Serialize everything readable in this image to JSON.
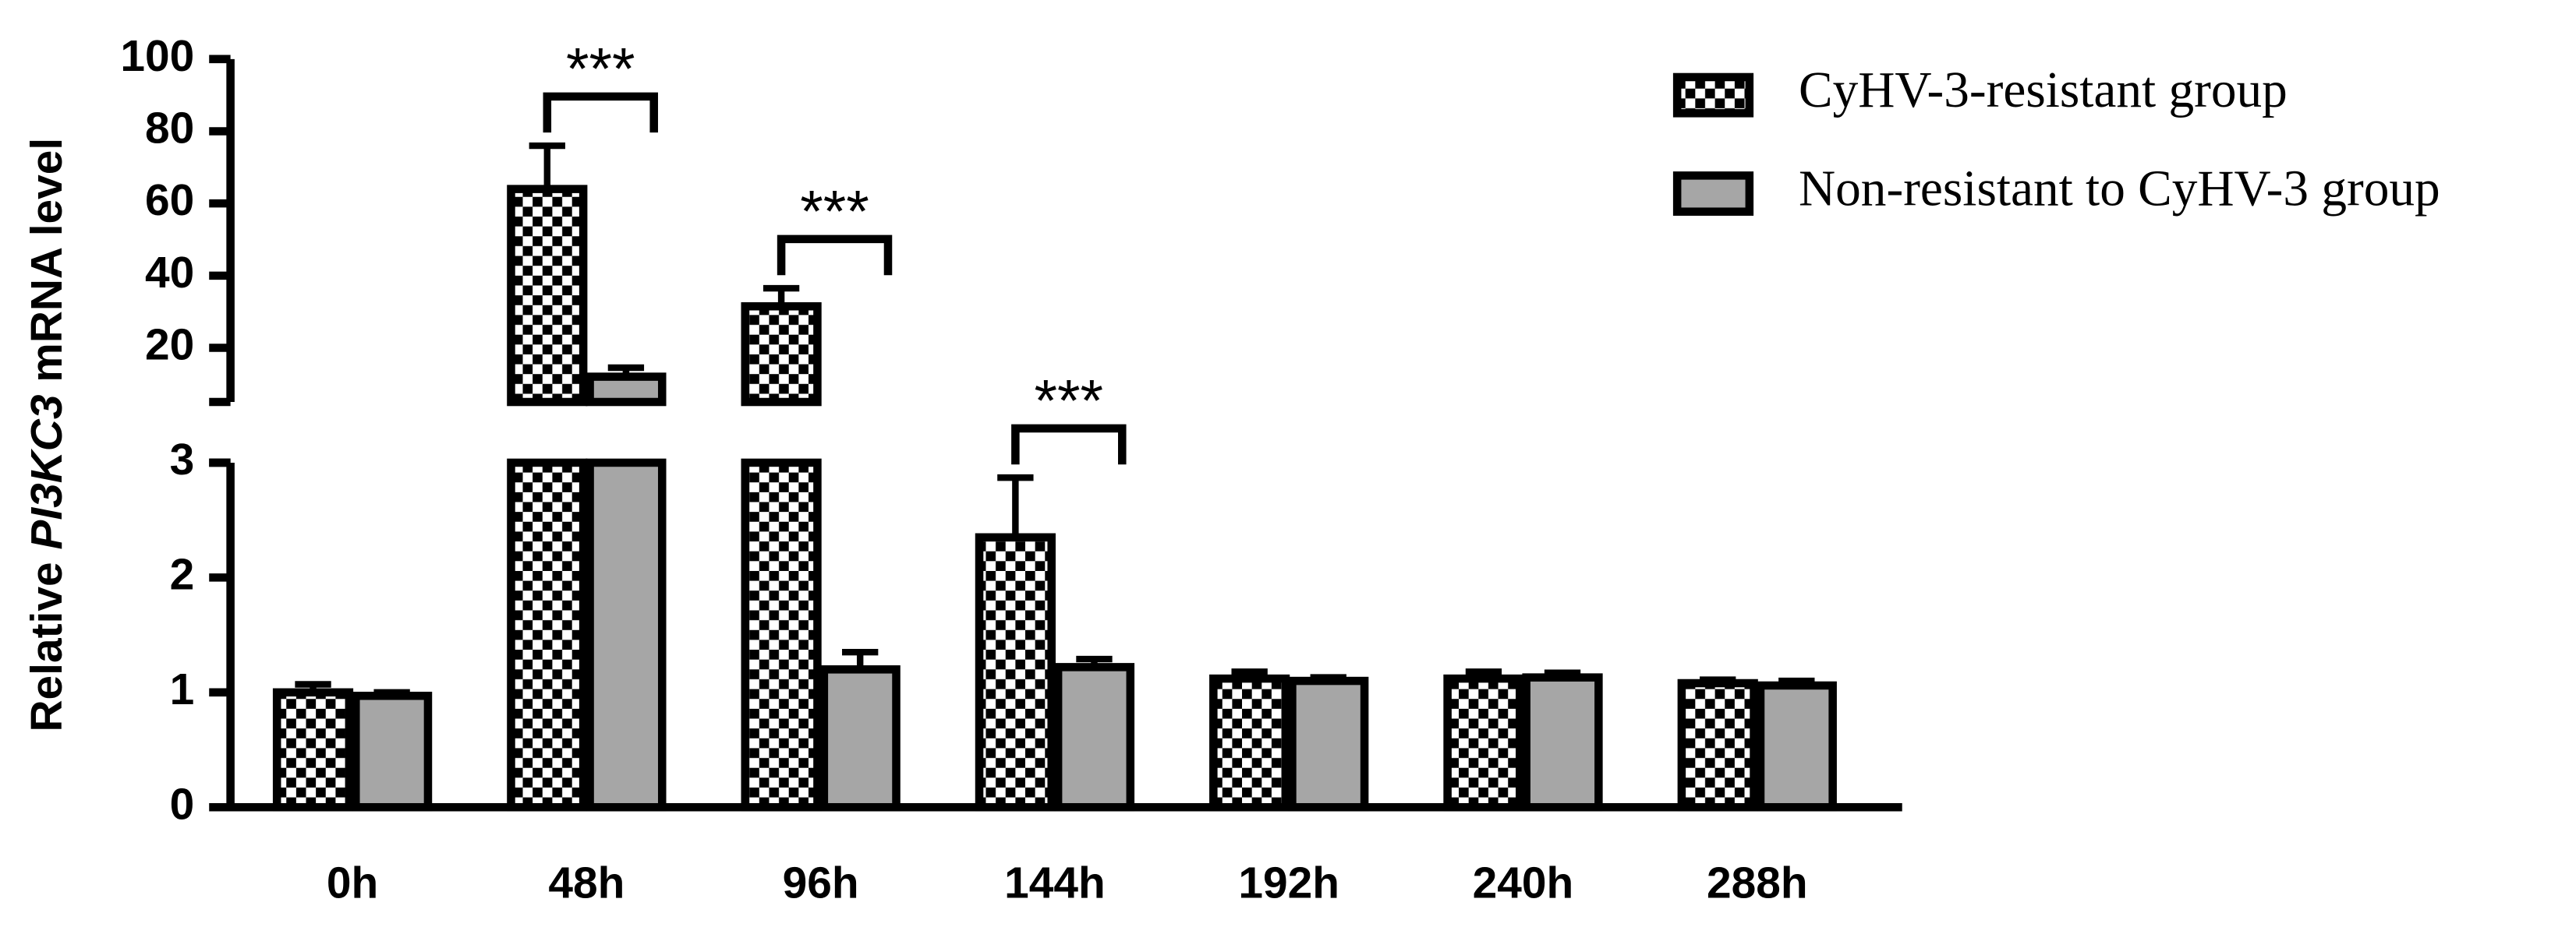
{
  "chart_data": {
    "type": "bar",
    "y_label": {
      "before": "Relative",
      "gene": "PI3KC3",
      "after": "mRNA level"
    },
    "categories": [
      "0h",
      "48h",
      "96h",
      "144h",
      "192h",
      "240h",
      "288h"
    ],
    "series": [
      {
        "name": "CyHV-3-resistant group",
        "color": "#000000",
        "pattern": "checker",
        "values": [
          1.0,
          64,
          31.5,
          2.35,
          1.12,
          1.12,
          1.08
        ],
        "errors": [
          0.07,
          12,
          5,
          0.52,
          0.06,
          0.06,
          0.03
        ]
      },
      {
        "name": "Non-resistant to CyHV-3 group",
        "color": "#a6a6a6",
        "values": [
          0.97,
          12,
          1.2,
          1.22,
          1.1,
          1.13,
          1.06
        ],
        "errors": [
          0.03,
          2.5,
          0.15,
          0.07,
          0.03,
          0.04,
          0.04
        ]
      }
    ],
    "significance": [
      null,
      "***",
      "***",
      "***",
      null,
      null,
      null
    ],
    "ylim": [
      0,
      100
    ],
    "ybreak": [
      3,
      5
    ],
    "yticks": [
      0,
      1,
      2,
      3,
      20,
      40,
      60,
      80,
      100
    ],
    "legend": "top-right"
  }
}
